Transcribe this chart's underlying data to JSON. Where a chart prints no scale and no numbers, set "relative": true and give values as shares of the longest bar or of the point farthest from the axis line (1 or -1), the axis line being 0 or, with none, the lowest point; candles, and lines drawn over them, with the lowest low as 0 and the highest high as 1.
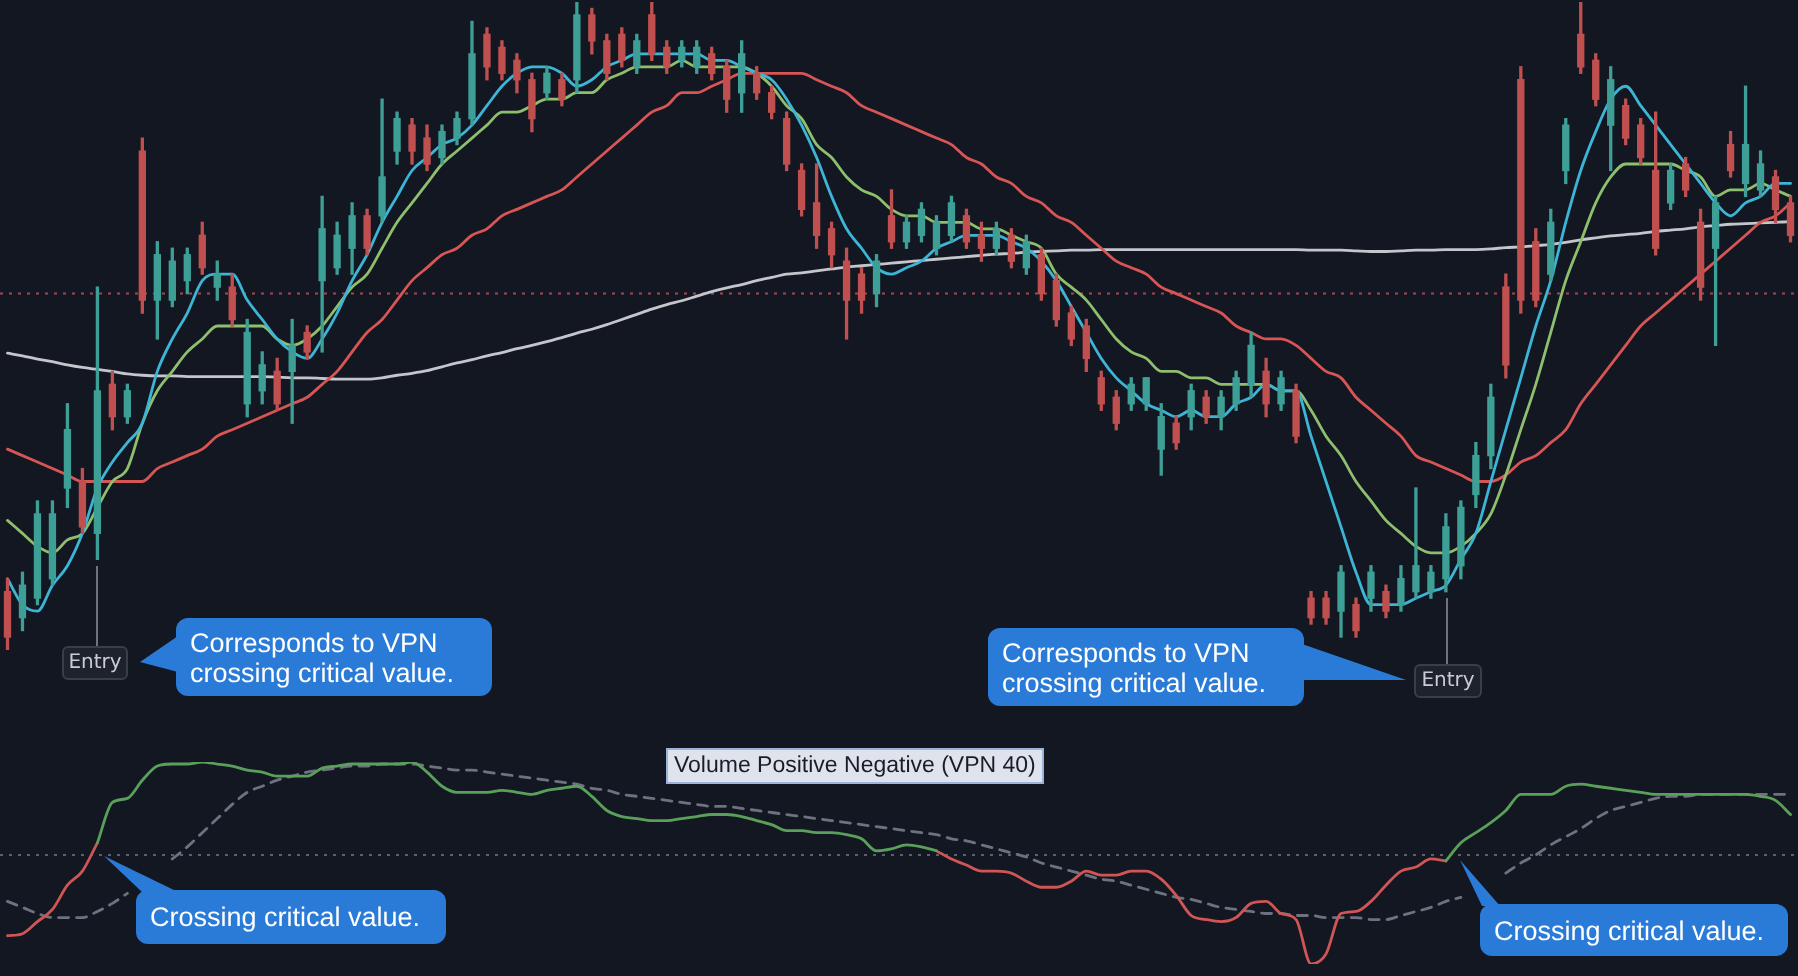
{
  "chart_data": [
    {
      "type": "candlestick",
      "relative": true,
      "categories": [
        null,
        null,
        null,
        null,
        null,
        null,
        null,
        null,
        null,
        null,
        null,
        null,
        null,
        null,
        null,
        null,
        null,
        null,
        null,
        null,
        null,
        null,
        null,
        null,
        null,
        null,
        null,
        null,
        null,
        null,
        null,
        null,
        null,
        null,
        null,
        null,
        null,
        null,
        null,
        null,
        null,
        null,
        null,
        null,
        null,
        null,
        null,
        null,
        null,
        null,
        null,
        null,
        null,
        null,
        null,
        null,
        null,
        null,
        null,
        null,
        null,
        null,
        null,
        null,
        null,
        null,
        null,
        null,
        null,
        null,
        null,
        null,
        null,
        null,
        null,
        null,
        null,
        null,
        null,
        null,
        null,
        null,
        null,
        null,
        null,
        null,
        null,
        null,
        null,
        null,
        null,
        null,
        null,
        null,
        null,
        null,
        null,
        null,
        null,
        null,
        null,
        null,
        null,
        null,
        null,
        null,
        null,
        null,
        null,
        null,
        null,
        null,
        null,
        null,
        null,
        null,
        null,
        null,
        null,
        null
      ],
      "ohlc": [
        [
          0.09,
          0.11,
          0,
          0.02
        ],
        [
          0.05,
          0.12,
          0.03,
          0.1
        ],
        [
          0.08,
          0.23,
          0.07,
          0.21
        ],
        [
          0.11,
          0.23,
          0.1,
          0.21
        ],
        [
          0.25,
          0.38,
          0.22,
          0.34
        ],
        [
          0.26,
          0.28,
          0.18,
          0.19
        ],
        [
          0.18,
          0.56,
          0.14,
          0.4
        ],
        [
          0.41,
          0.43,
          0.34,
          0.36
        ],
        [
          0.36,
          0.41,
          0.35,
          0.4
        ],
        [
          0.77,
          0.79,
          0.52,
          0.54
        ],
        [
          0.54,
          0.63,
          0.48,
          0.61
        ],
        [
          0.54,
          0.62,
          0.53,
          0.6
        ],
        [
          0.57,
          0.62,
          0.55,
          0.61
        ],
        [
          0.64,
          0.66,
          0.58,
          0.59
        ],
        [
          0.56,
          0.6,
          0.54,
          0.58
        ],
        [
          0.56,
          0.58,
          0.5,
          0.51
        ],
        [
          0.38,
          0.51,
          0.36,
          0.49
        ],
        [
          0.4,
          0.46,
          0.38,
          0.44
        ],
        [
          0.43,
          0.45,
          0.37,
          0.38
        ],
        [
          0.43,
          0.51,
          0.35,
          0.47
        ],
        [
          0.49,
          0.5,
          0.45,
          0.46
        ],
        [
          0.57,
          0.7,
          0.46,
          0.65
        ],
        [
          0.59,
          0.66,
          0.58,
          0.64
        ],
        [
          0.62,
          0.69,
          0.58,
          0.67
        ],
        [
          0.67,
          0.68,
          0.61,
          0.62
        ],
        [
          0.67,
          0.85,
          0.66,
          0.73
        ],
        [
          0.77,
          0.83,
          0.75,
          0.82
        ],
        [
          0.81,
          0.82,
          0.75,
          0.77
        ],
        [
          0.79,
          0.81,
          0.74,
          0.75
        ],
        [
          0.76,
          0.81,
          0.75,
          0.8
        ],
        [
          0.79,
          0.83,
          0.78,
          0.82
        ],
        [
          0.82,
          0.97,
          0.81,
          0.92
        ],
        [
          0.95,
          0.96,
          0.88,
          0.9
        ],
        [
          0.93,
          0.94,
          0.88,
          0.89
        ],
        [
          0.91,
          0.92,
          0.86,
          0.88
        ],
        [
          0.88,
          0.89,
          0.8,
          0.82
        ],
        [
          0.86,
          0.9,
          0.85,
          0.89
        ],
        [
          0.88,
          0.89,
          0.84,
          0.85
        ],
        [
          0.88,
          1,
          0.86,
          0.98
        ],
        [
          0.98,
          0.99,
          0.92,
          0.94
        ],
        [
          0.94,
          0.95,
          0.88,
          0.89
        ],
        [
          0.95,
          0.96,
          0.9,
          0.91
        ],
        [
          0.9,
          0.95,
          0.89,
          0.94
        ],
        [
          0.98,
          1,
          0.91,
          0.92
        ],
        [
          0.93,
          0.94,
          0.89,
          0.9
        ],
        [
          0.91,
          0.94,
          0.9,
          0.93
        ],
        [
          0.9,
          0.94,
          0.89,
          0.93
        ],
        [
          0.92,
          0.93,
          0.88,
          0.89
        ],
        [
          0.9,
          0.91,
          0.83,
          0.85
        ],
        [
          0.86,
          0.94,
          0.83,
          0.92
        ],
        [
          0.89,
          0.9,
          0.85,
          0.86
        ],
        [
          0.86,
          0.87,
          0.82,
          0.83
        ],
        [
          0.82,
          0.83,
          0.74,
          0.75
        ],
        [
          0.74,
          0.75,
          0.67,
          0.68
        ],
        [
          0.69,
          0.75,
          0.62,
          0.64
        ],
        [
          0.65,
          0.66,
          0.59,
          0.61
        ],
        [
          0.6,
          0.62,
          0.48,
          0.54
        ],
        [
          0.58,
          0.59,
          0.52,
          0.54
        ],
        [
          0.55,
          0.61,
          0.53,
          0.6
        ],
        [
          0.67,
          0.71,
          0.62,
          0.63
        ],
        [
          0.63,
          0.67,
          0.62,
          0.66
        ],
        [
          0.64,
          0.69,
          0.63,
          0.68
        ],
        [
          0.62,
          0.67,
          0.61,
          0.66
        ],
        [
          0.64,
          0.7,
          0.63,
          0.69
        ],
        [
          0.67,
          0.68,
          0.62,
          0.63
        ],
        [
          0.64,
          0.66,
          0.6,
          0.62
        ],
        [
          0.62,
          0.66,
          0.61,
          0.65
        ],
        [
          0.64,
          0.65,
          0.59,
          0.6
        ],
        [
          0.59,
          0.64,
          0.58,
          0.63
        ],
        [
          0.61,
          0.62,
          0.54,
          0.55
        ],
        [
          0.57,
          0.58,
          0.5,
          0.51
        ],
        [
          0.52,
          0.53,
          0.47,
          0.48
        ],
        [
          0.5,
          0.51,
          0.43,
          0.45
        ],
        [
          0.42,
          0.43,
          0.37,
          0.38
        ],
        [
          0.39,
          0.4,
          0.34,
          0.35
        ],
        [
          0.38,
          0.42,
          0.37,
          0.41
        ],
        [
          0.38,
          0.42,
          0.37,
          0.42
        ],
        [
          0.31,
          0.38,
          0.27,
          0.36
        ],
        [
          0.35,
          0.36,
          0.31,
          0.32
        ],
        [
          0.36,
          0.41,
          0.34,
          0.4
        ],
        [
          0.39,
          0.4,
          0.35,
          0.36
        ],
        [
          0.36,
          0.4,
          0.34,
          0.39
        ],
        [
          0.38,
          0.43,
          0.37,
          0.42
        ],
        [
          0.41,
          0.49,
          0.39,
          0.47
        ],
        [
          0.43,
          0.45,
          0.36,
          0.38
        ],
        [
          0.38,
          0.43,
          0.37,
          0.42
        ],
        [
          0.4,
          0.41,
          0.32,
          0.33
        ],
        [
          0.08,
          0.09,
          0.04,
          0.05
        ],
        [
          0.08,
          0.09,
          0.04,
          0.05
        ],
        [
          0.06,
          0.13,
          0.02,
          0.12
        ],
        [
          0.07,
          0.08,
          0.02,
          0.03
        ],
        [
          0.08,
          0.13,
          0.06,
          0.12
        ],
        [
          0.09,
          0.1,
          0.05,
          0.06
        ],
        [
          0.07,
          0.13,
          0.06,
          0.11
        ],
        [
          0.09,
          0.25,
          0.08,
          0.13
        ],
        [
          0.09,
          0.13,
          0.08,
          0.12
        ],
        [
          0.11,
          0.21,
          0.09,
          0.19
        ],
        [
          0.13,
          0.23,
          0.11,
          0.22
        ],
        [
          0.24,
          0.32,
          0.22,
          0.3
        ],
        [
          0.3,
          0.41,
          0.28,
          0.39
        ],
        [
          0.56,
          0.58,
          0.42,
          0.44
        ],
        [
          0.88,
          0.9,
          0.52,
          0.54
        ],
        [
          0.63,
          0.65,
          0.53,
          0.54
        ],
        [
          0.58,
          0.68,
          0.57,
          0.66
        ],
        [
          0.74,
          0.82,
          0.72,
          0.81
        ],
        [
          0.95,
          1,
          0.89,
          0.9
        ],
        [
          0.91,
          0.92,
          0.84,
          0.85
        ],
        [
          0.81,
          0.9,
          0.74,
          0.88
        ],
        [
          0.84,
          0.85,
          0.78,
          0.79
        ],
        [
          0.81,
          0.82,
          0.75,
          0.76
        ],
        [
          0.74,
          0.83,
          0.61,
          0.62
        ],
        [
          0.69,
          0.75,
          0.68,
          0.74
        ],
        [
          0.75,
          0.76,
          0.7,
          0.71
        ],
        [
          0.66,
          0.68,
          0.54,
          0.56
        ],
        [
          0.62,
          0.7,
          0.47,
          0.69
        ],
        [
          0.78,
          0.8,
          0.73,
          0.74
        ],
        [
          0.72,
          0.87,
          0.7,
          0.78
        ],
        [
          0.71,
          0.77,
          0.7,
          0.75
        ],
        [
          0.73,
          0.74,
          0.66,
          0.68
        ],
        [
          0.69,
          0.7,
          0.63,
          0.64
        ]
      ],
      "colors": [
        "#c0504f",
        "#3d9f96",
        "#3d9f96",
        "#3d9f96",
        "#3d9f96",
        "#c0504f",
        "#3d9f96",
        "#c0504f",
        "#3d9f96",
        "#c0504f",
        "#3d9f96",
        "#3d9f96",
        "#3d9f96",
        "#c0504f",
        "#3d9f96",
        "#c0504f",
        "#3d9f96",
        "#3d9f96",
        "#c0504f",
        "#3d9f96",
        "#c0504f",
        "#3d9f96",
        "#3d9f96",
        "#3d9f96",
        "#c0504f",
        "#3d9f96",
        "#3d9f96",
        "#c0504f",
        "#c0504f",
        "#3d9f96",
        "#3d9f96",
        "#3d9f96",
        "#c0504f",
        "#c0504f",
        "#c0504f",
        "#c0504f",
        "#3d9f96",
        "#c0504f",
        "#3d9f96",
        "#c0504f",
        "#c0504f",
        "#c0504f",
        "#3d9f96",
        "#c0504f",
        "#c0504f",
        "#3d9f96",
        "#3d9f96",
        "#c0504f",
        "#c0504f",
        "#3d9f96",
        "#c0504f",
        "#c0504f",
        "#c0504f",
        "#c0504f",
        "#c0504f",
        "#c0504f",
        "#c0504f",
        "#c0504f",
        "#3d9f96",
        "#c0504f",
        "#3d9f96",
        "#3d9f96",
        "#3d9f96",
        "#3d9f96",
        "#c0504f",
        "#c0504f",
        "#3d9f96",
        "#c0504f",
        "#3d9f96",
        "#c0504f",
        "#c0504f",
        "#c0504f",
        "#c0504f",
        "#c0504f",
        "#c0504f",
        "#3d9f96",
        "#3d9f96",
        "#3d9f96",
        "#c0504f",
        "#3d9f96",
        "#c0504f",
        "#3d9f96",
        "#3d9f96",
        "#3d9f96",
        "#c0504f",
        "#3d9f96",
        "#c0504f",
        "#c0504f",
        "#c0504f",
        "#3d9f96",
        "#c0504f",
        "#3d9f96",
        "#c0504f",
        "#3d9f96",
        "#3d9f96",
        "#3d9f96",
        "#3d9f96",
        "#3d9f96",
        "#3d9f96",
        "#3d9f96",
        "#c0504f",
        "#c0504f",
        "#c0504f",
        "#3d9f96",
        "#3d9f96",
        "#c0504f",
        "#c0504f",
        "#3d9f96",
        "#c0504f",
        "#c0504f",
        "#c0504f",
        "#3d9f96",
        "#c0504f",
        "#c0504f",
        "#3d9f96",
        "#c0504f",
        "#3d9f96",
        "#3d9f96",
        "#c0504f",
        "#c0504f"
      ],
      "series": [
        {
          "type": "line",
          "color": "#3cb5d6",
          "values": [
            0.11,
            0.07,
            0.06,
            0.1,
            0.13,
            0.18,
            0.25,
            0.29,
            0.32,
            0.35,
            0.43,
            0.48,
            0.52,
            0.57,
            0.58,
            0.58,
            0.54,
            0.51,
            0.48,
            0.46,
            0.45,
            0.48,
            0.52,
            0.57,
            0.61,
            0.66,
            0.7,
            0.74,
            0.76,
            0.78,
            0.79,
            0.81,
            0.84,
            0.87,
            0.89,
            0.9,
            0.9,
            0.89,
            0.87,
            0.88,
            0.9,
            0.91,
            0.92,
            0.92,
            0.92,
            0.92,
            0.92,
            0.91,
            0.91,
            0.9,
            0.89,
            0.88,
            0.85,
            0.81,
            0.76,
            0.7,
            0.65,
            0.62,
            0.59,
            0.58,
            0.59,
            0.6,
            0.62,
            0.63,
            0.64,
            0.64,
            0.64,
            0.63,
            0.62,
            0.6,
            0.57,
            0.53,
            0.49,
            0.45,
            0.42,
            0.4,
            0.38,
            0.37,
            0.36,
            0.37,
            0.36,
            0.36,
            0.38,
            0.39,
            0.41,
            0.4,
            0.4,
            0.33,
            0.26,
            0.19,
            0.12,
            0.07,
            0.07,
            0.07,
            0.08,
            0.09,
            0.1,
            0.14,
            0.18,
            0.26,
            0.34,
            0.42,
            0.5,
            0.57,
            0.66,
            0.74,
            0.8,
            0.85,
            0.87,
            0.84,
            0.81,
            0.78,
            0.75,
            0.72,
            0.69,
            0.67,
            0.69,
            0.7,
            0.72,
            0.72
          ]
        },
        {
          "type": "line",
          "color": "#8ebf6c",
          "values": [
            0.2,
            0.18,
            0.16,
            0.15,
            0.17,
            0.18,
            0.22,
            0.26,
            0.28,
            0.35,
            0.4,
            0.43,
            0.46,
            0.48,
            0.5,
            0.5,
            0.5,
            0.5,
            0.48,
            0.47,
            0.48,
            0.5,
            0.53,
            0.56,
            0.58,
            0.62,
            0.66,
            0.69,
            0.72,
            0.75,
            0.77,
            0.79,
            0.81,
            0.83,
            0.83,
            0.84,
            0.85,
            0.85,
            0.86,
            0.86,
            0.88,
            0.89,
            0.9,
            0.9,
            0.9,
            0.91,
            0.9,
            0.9,
            0.9,
            0.9,
            0.89,
            0.87,
            0.84,
            0.82,
            0.78,
            0.76,
            0.73,
            0.71,
            0.7,
            0.68,
            0.67,
            0.67,
            0.66,
            0.66,
            0.66,
            0.65,
            0.65,
            0.64,
            0.63,
            0.62,
            0.58,
            0.56,
            0.54,
            0.51,
            0.48,
            0.46,
            0.45,
            0.43,
            0.43,
            0.42,
            0.42,
            0.41,
            0.41,
            0.41,
            0.41,
            0.4,
            0.4,
            0.37,
            0.33,
            0.3,
            0.26,
            0.23,
            0.2,
            0.18,
            0.16,
            0.15,
            0.15,
            0.16,
            0.18,
            0.21,
            0.27,
            0.34,
            0.41,
            0.49,
            0.57,
            0.63,
            0.69,
            0.73,
            0.75,
            0.75,
            0.75,
            0.75,
            0.74,
            0.73,
            0.7,
            0.71,
            0.71,
            0.72,
            0.71,
            0.7
          ]
        },
        {
          "type": "line",
          "color": "#d75555",
          "values": [
            0.31,
            0.3,
            0.29,
            0.28,
            0.27,
            0.26,
            0.26,
            0.26,
            0.26,
            0.26,
            0.28,
            0.29,
            0.3,
            0.31,
            0.33,
            0.34,
            0.35,
            0.36,
            0.37,
            0.38,
            0.39,
            0.41,
            0.43,
            0.46,
            0.49,
            0.51,
            0.54,
            0.57,
            0.59,
            0.61,
            0.62,
            0.64,
            0.65,
            0.67,
            0.68,
            0.69,
            0.7,
            0.71,
            0.73,
            0.75,
            0.77,
            0.79,
            0.81,
            0.83,
            0.84,
            0.86,
            0.86,
            0.87,
            0.88,
            0.89,
            0.89,
            0.89,
            0.89,
            0.89,
            0.88,
            0.87,
            0.86,
            0.84,
            0.83,
            0.82,
            0.81,
            0.8,
            0.79,
            0.78,
            0.76,
            0.75,
            0.73,
            0.72,
            0.7,
            0.69,
            0.67,
            0.66,
            0.64,
            0.62,
            0.6,
            0.59,
            0.58,
            0.56,
            0.55,
            0.54,
            0.53,
            0.52,
            0.5,
            0.49,
            0.48,
            0.48,
            0.47,
            0.45,
            0.43,
            0.42,
            0.39,
            0.37,
            0.35,
            0.33,
            0.3,
            0.29,
            0.28,
            0.27,
            0.26,
            0.26,
            0.27,
            0.29,
            0.3,
            0.32,
            0.34,
            0.38,
            0.41,
            0.44,
            0.47,
            0.5,
            0.52,
            0.54,
            0.56,
            0.58,
            0.6,
            0.62,
            0.64,
            0.66,
            0.67,
            0.69
          ]
        },
        {
          "type": "line",
          "color": "#c4c6cc",
          "values": [
            0.458,
            0.454,
            0.449,
            0.445,
            0.44,
            0.436,
            0.433,
            0.43,
            0.426,
            0.424,
            0.423,
            0.423,
            0.422,
            0.422,
            0.422,
            0.422,
            0.422,
            0.422,
            0.421,
            0.42,
            0.42,
            0.419,
            0.418,
            0.418,
            0.418,
            0.42,
            0.424,
            0.427,
            0.431,
            0.437,
            0.443,
            0.448,
            0.454,
            0.459,
            0.465,
            0.47,
            0.476,
            0.482,
            0.489,
            0.495,
            0.502,
            0.51,
            0.518,
            0.526,
            0.533,
            0.539,
            0.546,
            0.553,
            0.559,
            0.564,
            0.57,
            0.575,
            0.58,
            0.582,
            0.585,
            0.588,
            0.591,
            0.593,
            0.595,
            0.597,
            0.599,
            0.601,
            0.603,
            0.605,
            0.607,
            0.609,
            0.611,
            0.612,
            0.614,
            0.615,
            0.616,
            0.617,
            0.617,
            0.618,
            0.618,
            0.618,
            0.618,
            0.618,
            0.618,
            0.618,
            0.618,
            0.618,
            0.618,
            0.618,
            0.618,
            0.618,
            0.618,
            0.617,
            0.617,
            0.617,
            0.616,
            0.615,
            0.615,
            0.616,
            0.617,
            0.617,
            0.618,
            0.618,
            0.618,
            0.619,
            0.621,
            0.622,
            0.624,
            0.626,
            0.629,
            0.633,
            0.636,
            0.639,
            0.641,
            0.643,
            0.646,
            0.648,
            0.65,
            0.653,
            0.655,
            0.657,
            0.658,
            0.659,
            0.66,
            0.661
          ]
        }
      ],
      "ref_lines": [
        {
          "axis": "y",
          "value": 0.55,
          "color": "#a8464a",
          "line_style": "dotted"
        }
      ],
      "annotations": [
        "Entry",
        "Corresponds to VPN crossing critical value.",
        "Corresponds to VPN crossing critical value.",
        "Entry"
      ]
    },
    {
      "type": "line",
      "relative": true,
      "title": "Volume Positive Negative (VPN 40)",
      "categories": [
        null,
        null,
        null,
        null,
        null,
        null,
        null,
        null,
        null,
        null,
        null,
        null,
        null,
        null,
        null,
        null,
        null,
        null,
        null,
        null,
        null,
        null,
        null,
        null,
        null,
        null,
        null,
        null,
        null,
        null,
        null,
        null,
        null,
        null,
        null,
        null,
        null,
        null,
        null,
        null,
        null,
        null,
        null,
        null,
        null,
        null,
        null,
        null,
        null,
        null,
        null,
        null,
        null,
        null,
        null,
        null,
        null,
        null,
        null,
        null,
        null,
        null,
        null,
        null,
        null,
        null,
        null,
        null,
        null,
        null,
        null,
        null,
        null,
        null,
        null,
        null,
        null,
        null,
        null,
        null,
        null,
        null,
        null,
        null,
        null,
        null,
        null,
        null,
        null,
        null,
        null,
        null,
        null,
        null,
        null,
        null,
        null,
        null,
        null,
        null,
        null,
        null,
        null,
        null,
        null,
        null,
        null,
        null,
        null,
        null,
        null,
        null,
        null,
        null,
        null,
        null,
        null,
        null,
        null,
        null
      ],
      "series": [
        {
          "color": "#5aa05a",
          "values": [
            null,
            null,
            null,
            null,
            null,
            null,
            0.6,
            0.8,
            0.82,
            0.91,
            0.98,
            0.99,
            0.99,
            1,
            0.99,
            0.98,
            0.96,
            0.95,
            0.93,
            0.93,
            0.93,
            0.97,
            0.98,
            0.99,
            0.99,
            0.99,
            0.99,
            1,
            0.95,
            0.88,
            0.85,
            0.85,
            0.85,
            0.86,
            0.85,
            0.84,
            0.86,
            0.87,
            0.88,
            0.83,
            0.76,
            0.73,
            0.72,
            0.71,
            0.71,
            0.72,
            0.73,
            0.74,
            0.74,
            0.73,
            0.71,
            0.69,
            0.66,
            0.66,
            0.65,
            0.65,
            0.64,
            0.62,
            0.56,
            0.57,
            0.59,
            0.58,
            0.56,
            null,
            null,
            null,
            null,
            null,
            null,
            null,
            null,
            null,
            null,
            null,
            null,
            null,
            null,
            null,
            null,
            null,
            null,
            null,
            null,
            null,
            null,
            null,
            null,
            null,
            null,
            null,
            null,
            null,
            null,
            null,
            null,
            null,
            0.51,
            0.6,
            0.65,
            0.7,
            0.76,
            0.84,
            0.84,
            0.84,
            0.88,
            0.89,
            0.88,
            0.87,
            0.86,
            0.85,
            0.84,
            0.84,
            0.84,
            0.84,
            0.84,
            0.84,
            0.84,
            0.83,
            0.81,
            0.74
          ]
        },
        {
          "color": "#d05656",
          "values": [
            0.14,
            0.15,
            0.21,
            0.27,
            0.39,
            0.46,
            0.6,
            null,
            null,
            null,
            null,
            null,
            null,
            null,
            null,
            null,
            null,
            null,
            null,
            null,
            null,
            null,
            null,
            null,
            null,
            null,
            null,
            null,
            null,
            null,
            null,
            null,
            null,
            null,
            null,
            null,
            null,
            null,
            null,
            null,
            null,
            null,
            null,
            null,
            null,
            null,
            null,
            null,
            null,
            null,
            null,
            null,
            null,
            null,
            null,
            null,
            null,
            null,
            null,
            null,
            null,
            null,
            0.56,
            0.52,
            0.49,
            0.46,
            0.46,
            0.45,
            0.41,
            0.38,
            0.38,
            0.41,
            0.46,
            0.44,
            0.44,
            0.46,
            0.46,
            0.42,
            0.34,
            0.24,
            0.22,
            0.21,
            0.23,
            0.3,
            0.31,
            0.25,
            0.22,
            0,
            0.05,
            0.25,
            0.26,
            0.31,
            0.39,
            0.46,
            0.48,
            0.52,
            0.51,
            null,
            null,
            null,
            null,
            null,
            null,
            null,
            null,
            null,
            null,
            null,
            null,
            null,
            null,
            null,
            null,
            null,
            null,
            null,
            null,
            null,
            null,
            null
          ]
        },
        {
          "color": "#6e7280",
          "line_style": "dashed",
          "values": [
            0.31,
            0.28,
            0.25,
            0.23,
            0.23,
            0.23,
            0.26,
            0.3,
            0.35,
            null,
            null,
            0.52,
            0.58,
            0.65,
            0.72,
            0.79,
            0.85,
            0.88,
            0.91,
            0.93,
            0.95,
            0.96,
            0.97,
            0.98,
            0.98,
            0.99,
            0.99,
            0.99,
            0.98,
            0.97,
            0.96,
            0.96,
            0.95,
            0.94,
            0.93,
            0.92,
            0.91,
            0.9,
            0.89,
            0.87,
            0.86,
            0.84,
            0.83,
            0.82,
            0.81,
            0.8,
            0.79,
            0.78,
            0.78,
            0.77,
            0.76,
            0.75,
            0.74,
            0.73,
            0.72,
            0.71,
            0.7,
            0.69,
            0.68,
            0.67,
            0.66,
            0.65,
            0.64,
            0.62,
            0.61,
            0.59,
            0.57,
            0.55,
            0.53,
            0.5,
            0.48,
            0.46,
            0.44,
            0.42,
            0.41,
            0.39,
            0.37,
            0.35,
            0.33,
            0.32,
            0.3,
            0.28,
            0.27,
            0.26,
            0.25,
            0.25,
            0.24,
            0.24,
            0.23,
            0.23,
            0.23,
            0.22,
            0.22,
            0.24,
            0.26,
            0.28,
            0.31,
            0.33,
            null,
            null,
            0.45,
            0.5,
            0.54,
            0.59,
            0.63,
            0.67,
            0.72,
            0.76,
            0.78,
            0.8,
            0.82,
            0.83,
            0.83,
            0.84,
            0.84,
            0.84,
            0.84,
            0.84,
            0.84,
            0.84
          ]
        }
      ],
      "ref_lines": [
        {
          "axis": "y",
          "value": 0.54,
          "color": "#5c606b",
          "line_style": "dotted"
        }
      ],
      "annotations": [
        "Crossing critical value.",
        "Crossing critical value."
      ]
    }
  ]
}
